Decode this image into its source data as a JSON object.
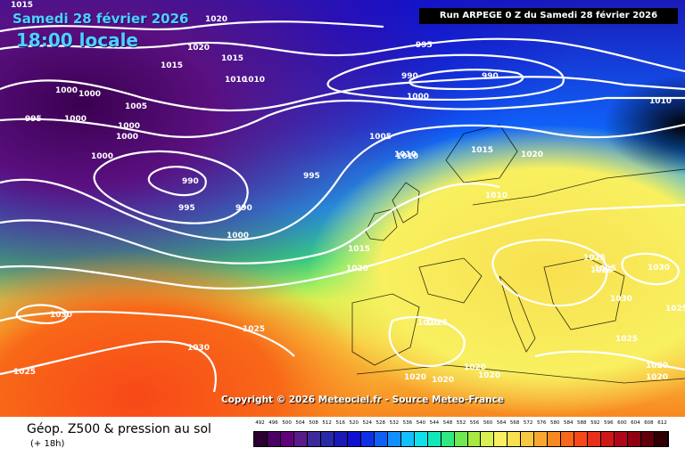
{
  "header": {
    "date": "Samedi 28 février 2026",
    "time": "18:00 locale",
    "run": "Run ARPEGE 0 Z du Samedi 28 février 2026"
  },
  "copyright": "Copyright © 2026 Meteociel.fr - Source Meteo-France",
  "footer": {
    "title": "Géop. Z500 & pression au sol",
    "subtitle": "(+ 18h)"
  },
  "scale": {
    "labels": [
      "492",
      "496",
      "500",
      "504",
      "508",
      "512",
      "516",
      "520",
      "524",
      "528",
      "532",
      "536",
      "540",
      "544",
      "548",
      "552",
      "556",
      "560",
      "564",
      "568",
      "572",
      "576",
      "580",
      "584",
      "588",
      "592",
      "596",
      "600",
      "604",
      "608",
      "612"
    ],
    "colors": [
      "#2a0030",
      "#4a0060",
      "#62007a",
      "#5a1a8a",
      "#3d2a9a",
      "#2a2aa8",
      "#1a1ab8",
      "#1010d0",
      "#1030e8",
      "#1060f8",
      "#1090ff",
      "#10c0ff",
      "#10e0e8",
      "#10e8b8",
      "#30e880",
      "#70e850",
      "#a8e840",
      "#d8f050",
      "#f8f060",
      "#f8e050",
      "#f8c840",
      "#f8a830",
      "#f88820",
      "#f86818",
      "#f84818",
      "#e83018",
      "#d01818",
      "#b00818",
      "#900010",
      "#600008",
      "#300004"
    ]
  },
  "isobars": [
    "1015",
    "1020",
    "1020",
    "1015",
    "1015",
    "1010",
    "1010",
    "1000",
    "1000",
    "1005",
    "1000",
    "995",
    "1000",
    "1000",
    "1000",
    "995",
    "990",
    "990",
    "995",
    "1005",
    "1010",
    "1000",
    "1015",
    "1020",
    "1020",
    "1030",
    "1030",
    "1025",
    "1025",
    "1025",
    "1020",
    "1020",
    "1020",
    "1020",
    "1025",
    "1030",
    "1030",
    "1025",
    "1025",
    "1020",
    "1020",
    "1010",
    "1010",
    "995",
    "990",
    "990",
    "1000",
    "1010",
    "1015",
    "1025",
    "1025",
    "1020"
  ]
}
